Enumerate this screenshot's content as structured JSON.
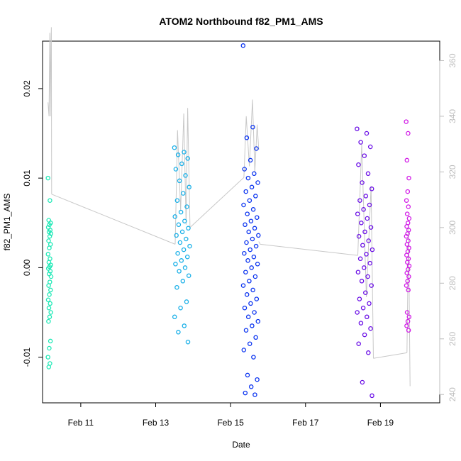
{
  "chart_data": {
    "type": "scatter",
    "title": "ATOM2 Northbound f82_PM1_AMS",
    "xlabel": "Date",
    "ylabel": "f82_PM1_AMS",
    "x_ticks": [
      "Feb 11",
      "Feb 13",
      "Feb 15",
      "Feb 17",
      "Feb 19"
    ],
    "y_ticks": [
      "-0.01",
      "0.00",
      "0.01",
      "0.02"
    ],
    "y2_ticks": [
      "240",
      "260",
      "280",
      "300",
      "320",
      "340",
      "360"
    ],
    "xlim": [
      "Feb 9 23:31",
      "Feb 20 13:59"
    ],
    "ylim": [
      -0.0151,
      0.0253
    ],
    "y2lim": [
      237,
      367
    ],
    "grid": false,
    "legend": "none",
    "colors": {
      "line": "#c8c8c8",
      "right_axis": "#bdbdbd",
      "cluster1": "#1de9b6",
      "cluster2": "#1ab0e8",
      "cluster3": "#0a33f0",
      "cluster4": "#6a0ee6",
      "cluster5": "#d11ae6"
    },
    "series": [
      {
        "type": "scatter",
        "axis": "left",
        "description": "points colored by time",
        "clusters": [
          {
            "date_start": "Feb 10 03:00",
            "date_end": "Feb 10 05:00",
            "color": "#1de9b6",
            "y": [
              0.01,
              0.0075,
              0.0053,
              0.005,
              0.0048,
              0.0045,
              0.0042,
              0.004,
              0.0038,
              0.0035,
              0.003,
              0.0026,
              0.0022,
              0.0015,
              0.001,
              0.0006,
              0.0003,
              0.0001,
              -0.0001,
              -0.0004,
              -0.0007,
              -0.001,
              -0.0016,
              -0.002,
              -0.0025,
              -0.003,
              -0.0036,
              -0.004,
              -0.0045,
              -0.005,
              -0.0055,
              -0.006,
              -0.0082,
              -0.009,
              -0.01,
              -0.0107,
              -0.0111
            ]
          },
          {
            "date_start": "Feb 13 12:00",
            "date_end": "Feb 13 22:00",
            "color": "#1ab0e8",
            "y": [
              0.0134,
              0.0129,
              0.0126,
              0.0122,
              0.0116,
              0.011,
              0.0103,
              0.0097,
              0.009,
              0.0083,
              0.0075,
              0.0068,
              0.0062,
              0.0057,
              0.0052,
              0.0048,
              0.0044,
              0.004,
              0.0036,
              0.0032,
              0.0028,
              0.0024,
              0.002,
              0.0016,
              0.0012,
              0.0008,
              0.0004,
              0.0,
              -0.0004,
              -0.0009,
              -0.0015,
              -0.0022,
              -0.0038,
              -0.0045,
              -0.0055,
              -0.0065,
              -0.0072,
              -0.0083
            ]
          },
          {
            "date_start": "Feb 15 08:00",
            "date_end": "Feb 15 18:00",
            "color": "#0a33f0",
            "y": [
              0.0248,
              0.0157,
              0.0145,
              0.0133,
              0.012,
              0.011,
              0.0105,
              0.01,
              0.0095,
              0.009,
              0.0085,
              0.008,
              0.0075,
              0.007,
              0.0065,
              0.006,
              0.0056,
              0.0052,
              0.0048,
              0.0044,
              0.004,
              0.0036,
              0.0032,
              0.0028,
              0.0024,
              0.002,
              0.0016,
              0.0012,
              0.0008,
              0.0004,
              0.0,
              -0.0005,
              -0.001,
              -0.0015,
              -0.002,
              -0.0025,
              -0.003,
              -0.0035,
              -0.004,
              -0.0045,
              -0.005,
              -0.0055,
              -0.006,
              -0.0065,
              -0.007,
              -0.0078,
              -0.0085,
              -0.0092,
              -0.01,
              -0.012,
              -0.0125,
              -0.0133,
              -0.014,
              -0.0142
            ]
          },
          {
            "date_start": "Feb 18 09:00",
            "date_end": "Feb 18 19:00",
            "color": "#6a0ee6",
            "y": [
              0.0155,
              0.015,
              0.014,
              0.0135,
              0.0125,
              0.0115,
              0.0105,
              0.0095,
              0.0088,
              0.008,
              0.0075,
              0.007,
              0.0065,
              0.006,
              0.0055,
              0.005,
              0.0045,
              0.004,
              0.0035,
              0.003,
              0.0025,
              0.002,
              0.0015,
              0.001,
              0.0005,
              0.0,
              -0.0005,
              -0.001,
              -0.0015,
              -0.002,
              -0.0028,
              -0.0035,
              -0.004,
              -0.0045,
              -0.005,
              -0.0055,
              -0.0062,
              -0.0068,
              -0.0075,
              -0.0085,
              -0.0095,
              -0.0128,
              -0.0143
            ]
          },
          {
            "date_start": "Feb 19 16:30",
            "date_end": "Feb 19 18:30",
            "color": "#d11ae6",
            "y": [
              0.0163,
              0.015,
              0.012,
              0.01,
              0.0085,
              0.0075,
              0.0068,
              0.006,
              0.0055,
              0.005,
              0.0046,
              0.0042,
              0.0038,
              0.0035,
              0.003,
              0.0026,
              0.0022,
              0.0018,
              0.0014,
              0.001,
              0.0006,
              0.0002,
              -0.0002,
              -0.0006,
              -0.001,
              -0.0015,
              -0.002,
              -0.0025,
              -0.005,
              -0.0055,
              -0.006,
              -0.0065,
              -0.007
            ]
          }
        ]
      },
      {
        "type": "line",
        "axis": "right",
        "description": "gray trace on right axis",
        "segments": [
          {
            "x": [
              "Feb 10 03:00",
              "Feb 10 03:40",
              "Feb 10 04:10",
              "Feb 10 04:30",
              "Feb 10 04:50",
              "Feb 10 05:10",
              "Feb 10 05:20"
            ],
            "y": [
              345,
              340,
              370,
              340,
              365,
              372,
              312
            ]
          },
          {
            "x": [
              "Feb 10 05:20",
              "Feb 13 12:30"
            ],
            "y": [
              312,
              294
            ]
          },
          {
            "x": [
              "Feb 13 12:30",
              "Feb 13 14:00",
              "Feb 13 16:00",
              "Feb 13 18:00",
              "Feb 13 19:30",
              "Feb 13 20:30",
              "Feb 13 22:00"
            ],
            "y": [
              294,
              335,
              306,
              341,
              301,
              343,
              300
            ]
          },
          {
            "x": [
              "Feb 13 22:00",
              "Feb 15 08:30"
            ],
            "y": [
              300,
              318
            ]
          },
          {
            "x": [
              "Feb 15 08:30",
              "Feb 15 10:00",
              "Feb 15 12:00",
              "Feb 15 14:00",
              "Feb 15 15:30",
              "Feb 15 17:00",
              "Feb 15 18:00"
            ],
            "y": [
              318,
              340,
              322,
              346,
              320,
              337,
              328
            ]
          },
          {
            "x": [
              "Feb 15 18:00",
              "Feb 15 19:00",
              "Feb 18 09:30"
            ],
            "y": [
              295,
              294,
              290
            ]
          },
          {
            "x": [
              "Feb 18 09:30",
              "Feb 18 12:00",
              "Feb 18 15:00",
              "Feb 18 18:00",
              "Feb 18 19:30"
            ],
            "y": [
              290,
              330,
              275,
              315,
              253
            ]
          },
          {
            "x": [
              "Feb 18 19:30",
              "Feb 19 17:00"
            ],
            "y": [
              253,
              255
            ]
          },
          {
            "x": [
              "Feb 19 17:00",
              "Feb 19 18:00",
              "Feb 19 19:00"
            ],
            "y": [
              255,
              300,
              243
            ]
          }
        ]
      }
    ]
  }
}
